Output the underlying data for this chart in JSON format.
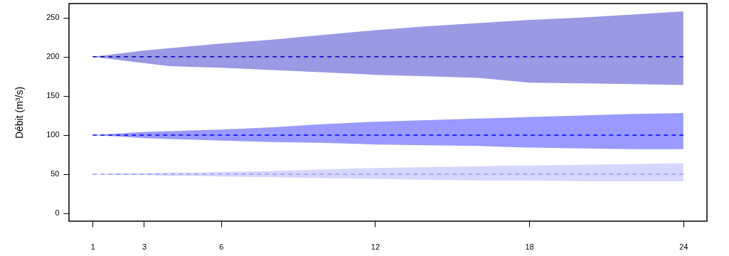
{
  "chart_data": {
    "type": "line",
    "ylabel": "Débit (m³/s)",
    "x": [
      1,
      2,
      3,
      4,
      5,
      6,
      8,
      10,
      12,
      14,
      16,
      17,
      18,
      20,
      22,
      24
    ],
    "series": [
      {
        "color": "#0000bb",
        "values": [
          200,
          200,
          200,
          200,
          200,
          200,
          200,
          200,
          200,
          200,
          200,
          200,
          200,
          200,
          200,
          200
        ],
        "lower": [
          200,
          196,
          192,
          188,
          187,
          186,
          183,
          180,
          177,
          175,
          173,
          170,
          167,
          166,
          165,
          164
        ],
        "upper": [
          200,
          204,
          208,
          211,
          214,
          217,
          222,
          228,
          234,
          239,
          243,
          245,
          247,
          250,
          254,
          258
        ]
      },
      {
        "color": "#0000ff",
        "values": [
          100,
          100,
          100,
          100,
          100,
          100,
          100,
          100,
          100,
          100,
          100,
          100,
          100,
          100,
          100,
          100
        ],
        "lower": [
          100,
          98,
          96,
          95,
          94,
          93,
          91,
          90,
          88,
          87,
          86,
          85,
          84,
          83,
          82,
          82
        ],
        "upper": [
          100,
          102,
          104,
          105,
          106,
          107,
          110,
          114,
          117,
          119,
          121,
          122,
          123,
          125,
          127,
          128
        ]
      },
      {
        "color": "#9999ff",
        "values": [
          50,
          50,
          50,
          50,
          50,
          50,
          50,
          50,
          50,
          50,
          50,
          50,
          50,
          50,
          50,
          50
        ],
        "lower": [
          50,
          49,
          49,
          48,
          48,
          47,
          46,
          45,
          44,
          43,
          42,
          42,
          42,
          41,
          41,
          41
        ],
        "upper": [
          50,
          51,
          51,
          52,
          52,
          53,
          54,
          56,
          58,
          59,
          60,
          61,
          61,
          62,
          63,
          64
        ]
      }
    ],
    "xlim": [
      0.08,
      24.92
    ],
    "xticks": [
      1,
      3,
      6,
      12,
      18,
      24
    ],
    "ylim": [
      -10,
      268
    ],
    "yticks": [
      0,
      50,
      100,
      150,
      200,
      250
    ],
    "line_style": "dashed"
  }
}
